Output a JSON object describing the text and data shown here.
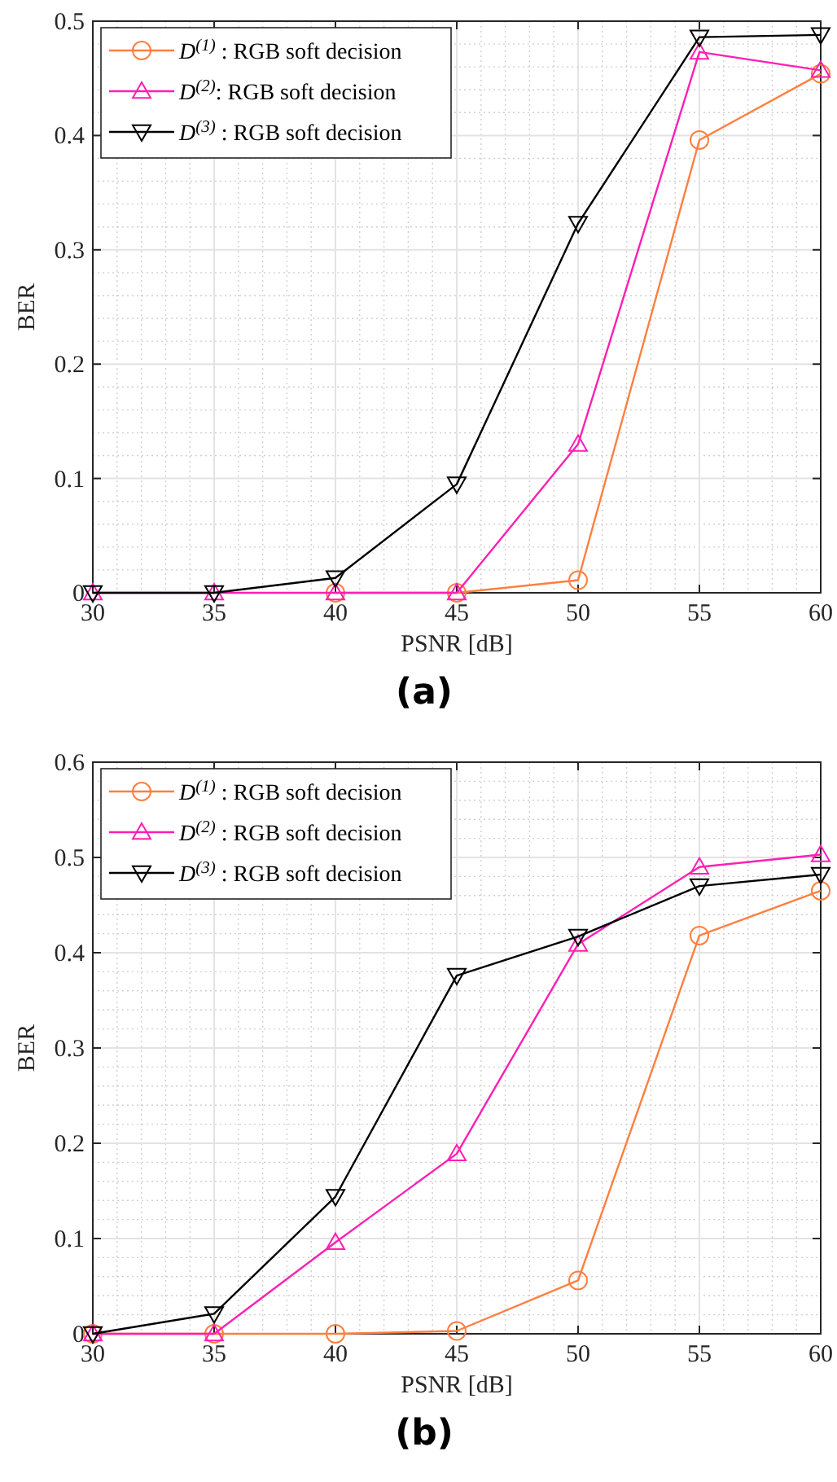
{
  "chart_data": [
    {
      "type": "line",
      "xlabel": "PSNR [dB]",
      "ylabel": "BER",
      "annotations": [
        "(a)"
      ],
      "x": [
        30,
        35,
        40,
        45,
        50,
        55,
        60
      ],
      "xlim": [
        30,
        60
      ],
      "xticks": [
        30,
        35,
        40,
        45,
        50,
        55,
        60
      ],
      "ylim": [
        0,
        0.5
      ],
      "yticks": [
        0,
        0.1,
        0.2,
        0.3,
        0.4,
        0.5
      ],
      "grid": true,
      "legend": "top left",
      "line_style": "solid",
      "series": [
        {
          "name": "D$^{(1)}$ : RGB soft decision",
          "color": "#ff7f3f",
          "marker": "circle",
          "values": [
            null,
            null,
            0,
            0,
            0.011,
            0.396,
            0.454
          ]
        },
        {
          "name": "D$^{(2)}$: RGB soft decision",
          "color": "#ff1fb4",
          "marker": "triangle",
          "values": [
            0,
            0,
            0,
            0,
            0.13,
            0.473,
            0.457
          ]
        },
        {
          "name": "D$^{(3)}$ : RGB soft decision",
          "color": "#000000",
          "marker": "triangle-down",
          "values": [
            0,
            0,
            0.013,
            0.095,
            0.323,
            0.486,
            0.488
          ]
        }
      ]
    },
    {
      "type": "line",
      "xlabel": "PSNR [dB]",
      "ylabel": "BER",
      "annotations": [
        "(b)"
      ],
      "x": [
        30,
        35,
        40,
        45,
        50,
        55,
        60
      ],
      "xlim": [
        30,
        60
      ],
      "xticks": [
        30,
        35,
        40,
        45,
        50,
        55,
        60
      ],
      "ylim": [
        0,
        0.6
      ],
      "yticks": [
        0,
        0.1,
        0.2,
        0.3,
        0.4,
        0.5,
        0.6
      ],
      "grid": true,
      "legend": "top left",
      "line_style": "solid",
      "series": [
        {
          "name": "D$^{(1)}$ : RGB soft decision",
          "color": "#ff7f3f",
          "marker": "circle",
          "values": [
            0,
            0,
            0,
            0.003,
            0.056,
            0.418,
            0.465
          ]
        },
        {
          "name": "D$^{(2)}$ : RGB soft decision",
          "color": "#ff1fb4",
          "marker": "triangle",
          "values": [
            0,
            0,
            0.096,
            0.189,
            0.409,
            0.49,
            0.503
          ]
        },
        {
          "name": "D$^{(3)}$ : RGB soft decision",
          "color": "#000000",
          "marker": "triangle-down",
          "values": [
            0,
            0.021,
            0.144,
            0.376,
            0.417,
            0.47,
            0.482
          ]
        }
      ]
    }
  ]
}
